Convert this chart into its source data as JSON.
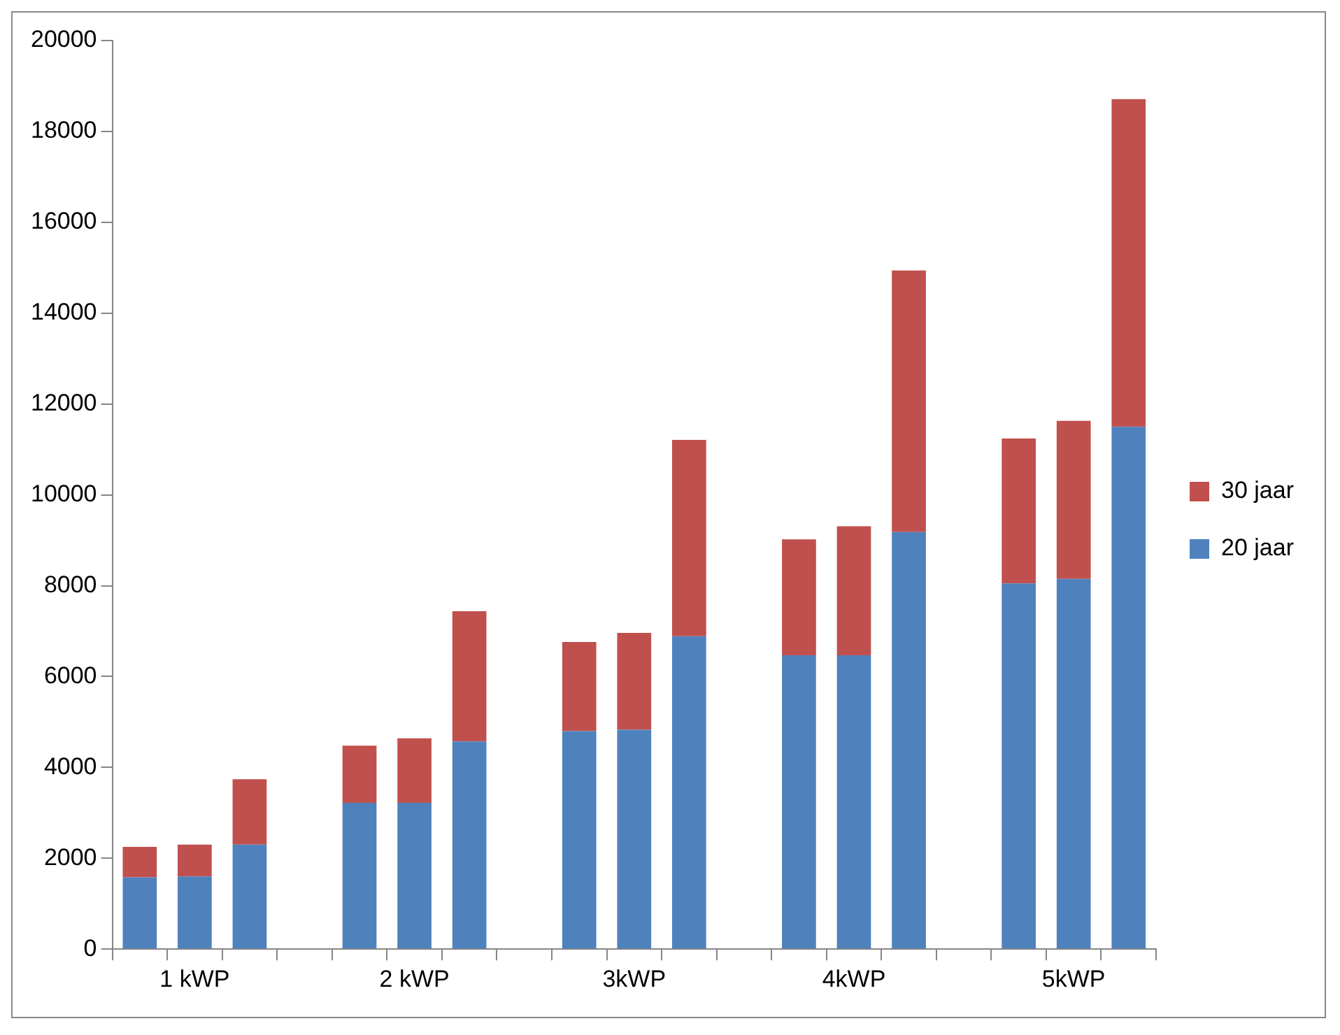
{
  "chart_data": {
    "type": "bar",
    "stacked": true,
    "categories": [
      null,
      "1 kWP",
      null,
      null,
      null,
      "2 kWP",
      null,
      null,
      null,
      "3kWP",
      null,
      null,
      null,
      "4kWP",
      null,
      null,
      null,
      "5kWP",
      null
    ],
    "series": [
      {
        "name": "20 jaar",
        "color": "#4f81bd",
        "values": [
          1580,
          1600,
          2300,
          null,
          3220,
          3220,
          4570,
          null,
          4800,
          4830,
          6890,
          null,
          6470,
          6470,
          9180,
          null,
          8050,
          8150,
          11500
        ]
      },
      {
        "name": "30 jaar",
        "color": "#c0504d",
        "values": [
          670,
          700,
          1440,
          null,
          1260,
          1420,
          2870,
          null,
          1960,
          2130,
          4320,
          null,
          2550,
          2840,
          5760,
          null,
          3190,
          3480,
          7210
        ]
      }
    ],
    "ylim": [
      0,
      20000
    ],
    "yticks": [
      0,
      2000,
      4000,
      6000,
      8000,
      10000,
      12000,
      14000,
      16000,
      18000,
      20000
    ],
    "grid": false,
    "legend": "right"
  }
}
